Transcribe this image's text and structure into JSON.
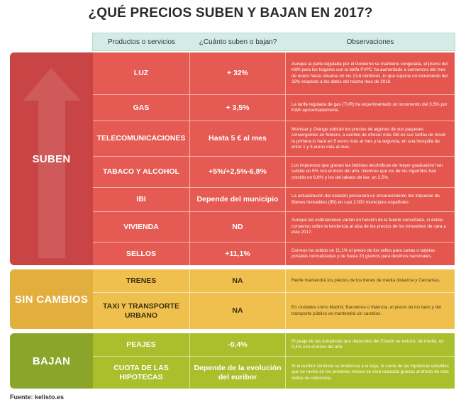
{
  "title": "¿QUÉ PRECIOS SUBEN Y BAJAN EN 2017?",
  "headers": {
    "product": "Productos o servicios",
    "change": "¿Cuánto suben o bajan?",
    "notes": "Observaciones"
  },
  "sections": {
    "suben": {
      "label": "SUBEN",
      "rows": [
        {
          "product": "LUZ",
          "change": "+ 32%",
          "notes": "Aunque la parte regulada por el Gobierno se mantiene congelada, el precio del kWh para los hogares con la tarifa PVPC ha aumentado a comienzos del mes de enero hasta situarse en los 13,6 céntimos, lo que supone un incremento del 32% respecto a los datos del mismo mes de 2016"
        },
        {
          "product": "GAS",
          "change": "+ 3,5%",
          "notes": "La tarifa regulada de gas (TUR) ha experimentado un incremento del 3,5% por KWh aproximadamente."
        },
        {
          "product": "TELECOMUNICACIONES",
          "change": "Hasta 5 € al mes",
          "notes": "Movistar y Orange subirán los precios de algunos de sus paquetes convergentes en febrero, a cambio de ofrecer más GB en sus tarifas de móvil: la primera lo hará en 5 euros más al mes y la segunda, en una horquilla de entre 1 y 5 euros más al mes."
        },
        {
          "product": "TABACO Y ALCOHOL",
          "change": "+5%/+2,5%-6,8%",
          "notes": "Los impuestos que gravan las bebidas alcohólicas de mayor graduación han subido un 5% con el inicio del año, mientras que los de los cigarrillos han crecido un 6,8% y los del tabaco de liar, un 2,5%."
        },
        {
          "product": "IBI",
          "change": "Depende del municipio",
          "notes": "La actualización del catastro provocará un encarecimiento del Impuesto de Bienes Inmuebles (IBI) en casi 2.000 municipios españoles"
        },
        {
          "product": "VIVIENDA",
          "change": "ND",
          "notes": "Aunque las estimaciones varían en función de la fuente consultada, sí existe consenso sobre la tendencia al alza de los precios de los inmuebles de cara a este 2017."
        },
        {
          "product": "SELLOS",
          "change": "+11,1%",
          "notes": "Correos ha subido un 11,1% el precio de los sellos para cartas o tarjetas postales normalizadas y de hasta 20 gramos para destinos nacionales."
        }
      ]
    },
    "sin_cambios": {
      "label": "SIN CAMBIOS",
      "rows": [
        {
          "product": "TRENES",
          "change": "NA",
          "notes": "Renfe mantendrá los precios de los trenes de media distancia y Cercanías."
        },
        {
          "product": "TAXI Y TRANSPORTE URBANO",
          "change": "NA",
          "notes": "En ciudades como Madrid, Barcelona o Valencia, el precio de los taxis y del transporte público se mantendrá sin cambios."
        }
      ]
    },
    "bajan": {
      "label": "BAJAN",
      "rows": [
        {
          "product": "PEAJES",
          "change": "-0,4%",
          "notes": "El peaje de las autopistas que dependen del Estado se reduce, de media, un 0,4% con el inicio del año."
        },
        {
          "product": "CUOTA DE LAS HIPOTECAS",
          "change": "Depende de la evolución del euribor",
          "notes": "Si el euribor continúa su tendencia a la baja, la cuota de las hipotecas variables que se revise en los próximos meses se verá reducida gracias al efecto de este índice de referencia."
        }
      ]
    }
  },
  "source": "Fuente: kelisto.es",
  "colors": {
    "suben": "#e55a52",
    "sin_cambios": "#f0c04e",
    "bajan": "#a9bf2c",
    "header": "#d3ece6"
  }
}
